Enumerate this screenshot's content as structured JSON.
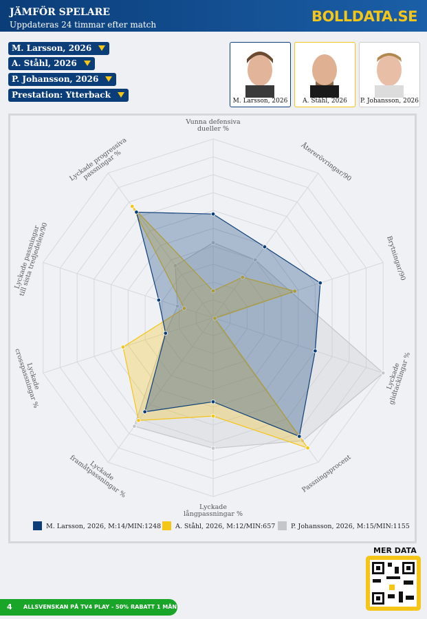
{
  "header": {
    "title": "JÄMFÖR SPELARE",
    "subtitle": "Uppdateras 24 timmar efter match",
    "logo": "BOLLDATA.SE"
  },
  "selectors": [
    "M. Larsson, 2026",
    "A. Ståhl, 2026",
    "P. Johansson, 2026",
    "Prestation: Ytterback"
  ],
  "players": [
    "M. Larsson, 2026",
    "A. Ståhl, 2026",
    "P. Johansson, 2026"
  ],
  "chart_data": {
    "type": "radar",
    "axes": [
      [
        "Vunna defensiva",
        "dueller %"
      ],
      [
        "Återerövringar/90"
      ],
      [
        "Brytningar/90"
      ],
      [
        "Lyckade",
        "glidtacklingar %"
      ],
      [
        "Passningsprocent"
      ],
      [
        "Lyckade",
        "långpassningar %"
      ],
      [
        "Lyckade",
        "framåtpassningar %"
      ],
      [
        "Lyckade",
        "crosspassningar %"
      ],
      [
        "Lyckade passningar",
        "till sista tredjedelen/90"
      ],
      [
        "Lyckade progressiva",
        "passningar %"
      ]
    ],
    "rlim": [
      0,
      100
    ],
    "rticks": [
      10,
      20,
      30,
      40,
      50,
      60,
      70,
      80,
      90,
      100
    ],
    "grid": true,
    "series": [
      {
        "name": "M. Larsson, 2026, M:14/MIN:1248",
        "color": "#0b3d78",
        "values": [
          58,
          49,
          63,
          60,
          82,
          47,
          65,
          28,
          32,
          73
        ]
      },
      {
        "name": "A. Ståhl, 2026, M:12/MIN:657",
        "color": "#f5c518",
        "values": [
          15,
          28,
          48,
          1,
          90,
          55,
          71,
          53,
          17,
          77
        ]
      },
      {
        "name": "P. Johansson, 2026, M:15/MIN:1155",
        "color": "#c4c6ca",
        "values": [
          42,
          40,
          46,
          100,
          85,
          73,
          75,
          28,
          21,
          36
        ]
      }
    ]
  },
  "more_data": "MER DATA",
  "footer": {
    "badge": "4",
    "promo": "ALLSVENSKAN PÅ TV4 PLAY - 50% RABATT 1 MÅN"
  }
}
